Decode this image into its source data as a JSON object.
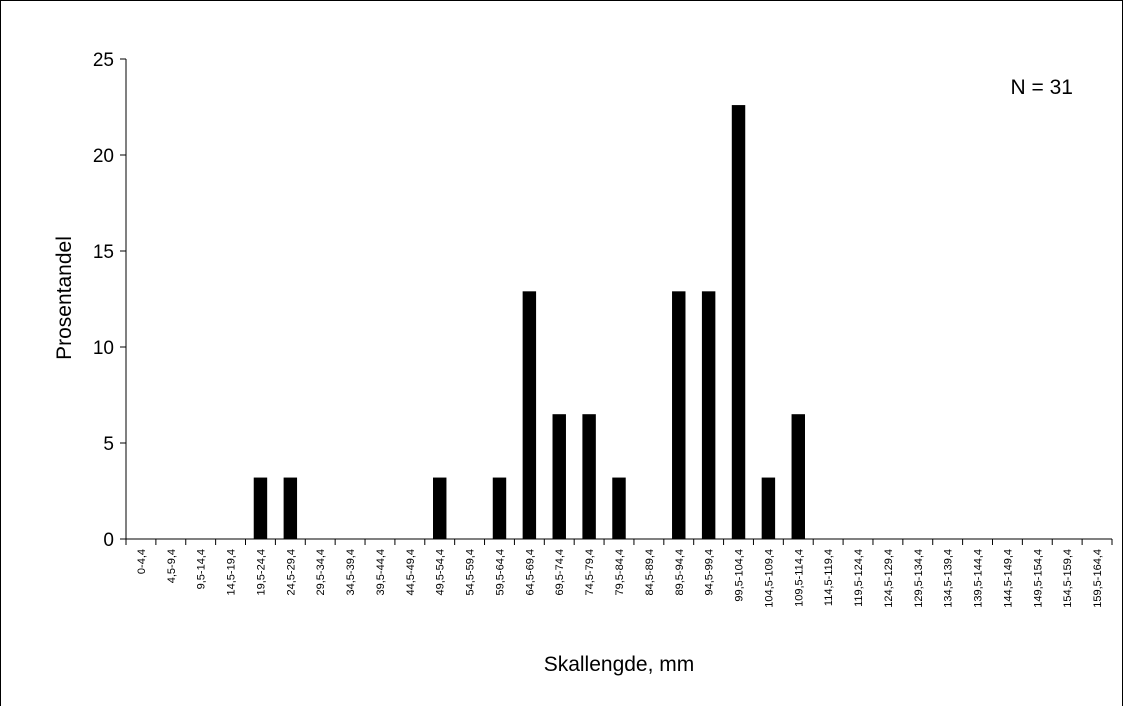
{
  "chart_data": {
    "type": "bar",
    "title": "",
    "xlabel": "Skallengde, mm",
    "ylabel": "Prosentandel",
    "annotation": "N = 31",
    "ylim": [
      0,
      25
    ],
    "yticks": [
      0,
      5,
      10,
      15,
      20,
      25
    ],
    "grid": false,
    "legend": "none",
    "bar_color": "#000000",
    "categories": [
      "0-4,4",
      "4,5-9,4",
      "9,5-14,4",
      "14,5-19,4",
      "19,5-24,4",
      "24,5-29,4",
      "29,5-34,4",
      "34,5-39,4",
      "39,5-44,4",
      "44,5-49,4",
      "49,5-54,4",
      "54,5-59,4",
      "59,5-64,4",
      "64,5-69,4",
      "69,5-74,4",
      "74,5-79,4",
      "79,5-84,4",
      "84,5-89,4",
      "89,5-94,4",
      "94,5-99,4",
      "99,5-104,4",
      "104,5-109,4",
      "109,5-114,4",
      "114,5-119,4",
      "119,5-124,4",
      "124,5-129,4",
      "129,5-134,4",
      "134,5-139,4",
      "139,5-144,4",
      "144,5-149,4",
      "149,5-154,4",
      "154,5-159,4",
      "159,5-164,4"
    ],
    "values": [
      0,
      0,
      0,
      0,
      3.2,
      3.2,
      0,
      0,
      0,
      0,
      3.2,
      0,
      3.2,
      12.9,
      6.5,
      6.5,
      3.2,
      0,
      12.9,
      12.9,
      22.6,
      3.2,
      6.5,
      0,
      0,
      0,
      0,
      0,
      0,
      0,
      0,
      0,
      0
    ]
  }
}
